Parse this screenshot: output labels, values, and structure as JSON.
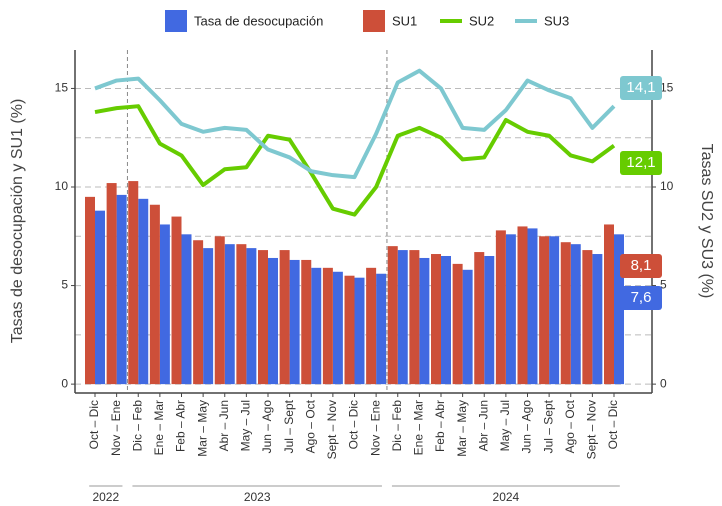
{
  "chart_data": {
    "type": "bar_line",
    "categories": [
      "Oct – Dic",
      "Nov – Ene",
      "Dic – Feb",
      "Ene – Mar",
      "Feb – Abr",
      "Mar – May",
      "Abr – Jun",
      "May – Jul",
      "Jun – Ago",
      "Jul – Sept",
      "Ago – Oct",
      "Sept – Nov",
      "Oct – Dic",
      "Nov – Ene",
      "Dic – Feb",
      "Ene – Mar",
      "Feb – Abr",
      "Mar – May",
      "Abr – Jun",
      "May – Jul",
      "Jun – Ago",
      "Jul – Sept",
      "Ago – Oct",
      "Sept – Nov",
      "Oct – Dic"
    ],
    "x_groups": [
      {
        "label": "2022",
        "start": 0,
        "end": 1
      },
      {
        "label": "2023",
        "start": 2,
        "end": 13
      },
      {
        "label": "2024",
        "start": 14,
        "end": 24
      }
    ],
    "series": [
      {
        "name": "Tasa de desocupación",
        "kind": "bar",
        "color": "#4169e1",
        "axis": "y",
        "values": [
          8.8,
          9.6,
          9.4,
          8.1,
          7.6,
          6.9,
          7.1,
          6.9,
          6.4,
          6.3,
          5.9,
          5.7,
          5.4,
          5.6,
          6.8,
          6.4,
          6.5,
          5.8,
          6.5,
          7.6,
          7.9,
          7.5,
          7.1,
          6.6,
          7.6
        ],
        "value_labels": [
          null,
          null,
          null,
          null,
          null,
          null,
          null,
          null,
          null,
          null,
          null,
          null,
          null,
          null,
          null,
          null,
          null,
          null,
          null,
          null,
          null,
          null,
          null,
          null,
          "7,6"
        ]
      },
      {
        "name": "SU1",
        "kind": "bar",
        "color": "#cd4f39",
        "axis": "y",
        "values": [
          9.5,
          10.2,
          10.3,
          9.1,
          8.5,
          7.3,
          7.5,
          7.1,
          6.8,
          6.8,
          6.3,
          5.9,
          5.5,
          5.9,
          7.0,
          6.8,
          6.6,
          6.1,
          6.7,
          7.8,
          8.0,
          7.5,
          7.2,
          6.8,
          8.1
        ],
        "value_labels": [
          null,
          null,
          null,
          null,
          null,
          null,
          null,
          null,
          null,
          null,
          null,
          null,
          null,
          null,
          null,
          null,
          null,
          null,
          null,
          null,
          null,
          null,
          null,
          null,
          "8,1"
        ]
      },
      {
        "name": "SU2",
        "kind": "line",
        "color": "#66cc00",
        "axis": "y2",
        "values": [
          13.8,
          14.0,
          14.1,
          12.2,
          11.6,
          10.1,
          10.9,
          11.0,
          12.6,
          12.4,
          10.7,
          8.9,
          8.6,
          10.0,
          12.6,
          13.0,
          12.5,
          11.4,
          11.5,
          13.4,
          12.8,
          12.6,
          11.6,
          11.3,
          12.1
        ],
        "value_labels": [
          null,
          null,
          null,
          null,
          null,
          null,
          null,
          null,
          null,
          null,
          null,
          null,
          null,
          null,
          null,
          null,
          null,
          null,
          null,
          null,
          null,
          null,
          null,
          null,
          "12,1"
        ]
      },
      {
        "name": "SU3",
        "kind": "line",
        "color": "#7ec8d0",
        "axis": "y2",
        "values": [
          15.0,
          15.4,
          15.5,
          14.4,
          13.2,
          12.8,
          13.0,
          12.9,
          11.9,
          11.5,
          10.8,
          10.6,
          10.5,
          12.7,
          15.3,
          15.9,
          15.0,
          13.0,
          12.9,
          13.9,
          15.4,
          14.9,
          14.5,
          13.0,
          14.1
        ],
        "value_labels": [
          null,
          null,
          null,
          null,
          null,
          null,
          null,
          null,
          null,
          null,
          null,
          null,
          null,
          null,
          null,
          null,
          null,
          null,
          null,
          null,
          null,
          null,
          null,
          null,
          "14,1"
        ]
      }
    ],
    "y_label": "Tasas de desocupación y SU1 (%)",
    "y2_label": "Tasas SU2 y SU3 (%)",
    "ylim": [
      -0.45,
      16.95
    ],
    "yticks": [
      0,
      5,
      10,
      15
    ],
    "y2lim": [
      -0.45,
      16.95
    ],
    "y2ticks": [
      0,
      5,
      10,
      15
    ],
    "minor_grid": [
      2.5,
      7.5,
      12.5
    ],
    "grid": true,
    "legend": "top"
  }
}
